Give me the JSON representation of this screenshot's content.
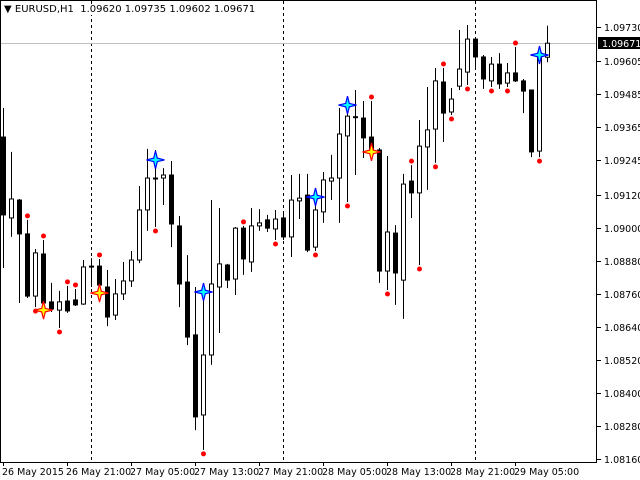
{
  "header": {
    "menu_icon": "triangle-down-icon",
    "symbol": "EURUSD,H1",
    "ohlc": "1.09620 1.09735 1.09602 1.09671"
  },
  "chart_data": {
    "type": "candlestick",
    "symbol": "EURUSD",
    "timeframe": "H1",
    "ylim": [
      1.0813,
      1.0983
    ],
    "bid_price": "1.09671",
    "colors": {
      "bull_body": "#ffffff",
      "bear_body": "#000000",
      "wick": "#000000",
      "bid_line": "#c0c0c0",
      "fractal_dot": "#ff0000",
      "sell_star": "#ffff00",
      "sell_star_outline": "#ff0000",
      "buy_star": "#00ffff",
      "buy_star_outline": "#0000ff",
      "period_separator": "#000000"
    },
    "y_ticks": [
      "1.09730",
      "1.09605",
      "1.09485",
      "1.09365",
      "1.09245",
      "1.09120",
      "1.09000",
      "1.08880",
      "1.08760",
      "1.08640",
      "1.08520",
      "1.08400",
      "1.08280",
      "1.08160"
    ],
    "x_tick_labels": [
      {
        "bar": 0,
        "label": "26 May 2015"
      },
      {
        "bar": 8,
        "label": "26 May 21:00"
      },
      {
        "bar": 16,
        "label": "27 May 05:00"
      },
      {
        "bar": 24,
        "label": "27 May 13:00"
      },
      {
        "bar": 32,
        "label": "27 May 21:00"
      },
      {
        "bar": 40,
        "label": "28 May 05:00"
      },
      {
        "bar": 48,
        "label": "28 May 13:00"
      },
      {
        "bar": 56,
        "label": "28 May 21:00"
      },
      {
        "bar": 64,
        "label": "29 May 05:00"
      }
    ],
    "period_separators_at_bars": [
      11,
      35,
      59
    ],
    "candles_ohlc": [
      [
        1.0933,
        1.09436,
        1.08854,
        1.09047
      ],
      [
        1.09036,
        1.09276,
        1.08967,
        1.09105
      ],
      [
        1.09101,
        1.09105,
        1.08727,
        1.08978
      ],
      [
        1.08978,
        1.09029,
        1.08745,
        1.08752
      ],
      [
        1.08752,
        1.08923,
        1.08712,
        1.08909
      ],
      [
        1.08905,
        1.08956,
        1.08694,
        1.08727
      ],
      [
        1.08731,
        1.088,
        1.08694,
        1.08705
      ],
      [
        1.08701,
        1.08771,
        1.08636,
        1.08731
      ],
      [
        1.08734,
        1.08789,
        1.08691,
        1.08698
      ],
      [
        1.08738,
        1.08778,
        1.08716,
        1.0872
      ],
      [
        1.08723,
        1.08883,
        1.0872,
        1.08858
      ],
      [
        1.08861,
        1.0889,
        1.08785,
        1.08858
      ],
      [
        1.08861,
        1.08887,
        1.08767,
        1.08792
      ],
      [
        1.08785,
        1.08847,
        1.08643,
        1.08676
      ],
      [
        1.08683,
        1.08814,
        1.08665,
        1.0876
      ],
      [
        1.0876,
        1.08876,
        1.08738,
        1.08807
      ],
      [
        1.08807,
        1.08916,
        1.08785,
        1.08883
      ],
      [
        1.08883,
        1.09152,
        1.08872,
        1.09065
      ],
      [
        1.09065,
        1.09287,
        1.08989,
        1.09181
      ],
      [
        1.09181,
        1.09283,
        1.09003,
        1.09178
      ],
      [
        1.09181,
        1.09217,
        1.09083,
        1.09192
      ],
      [
        1.09192,
        1.09243,
        1.0893,
        1.09014
      ],
      [
        1.09007,
        1.09043,
        1.08712,
        1.08796
      ],
      [
        1.08803,
        1.08901,
        1.08574,
        1.08603
      ],
      [
        1.08611,
        1.08785,
        1.08265,
        1.08313
      ],
      [
        1.0832,
        1.08789,
        1.08193,
        1.08538
      ],
      [
        1.08538,
        1.09101,
        1.08502,
        1.08796
      ],
      [
        1.08785,
        1.09072,
        1.08618,
        1.08869
      ],
      [
        1.08865,
        1.08869,
        1.08781,
        1.0881
      ],
      [
        1.08814,
        1.09003,
        1.08756,
        1.08999
      ],
      [
        1.08999,
        1.09007,
        1.08829,
        1.08887
      ],
      [
        1.08876,
        1.09072,
        1.0884,
        1.09007
      ],
      [
        1.09007,
        1.09068,
        1.08989,
        1.09018
      ],
      [
        1.09029,
        1.09047,
        1.08985,
        1.08999
      ],
      [
        1.08996,
        1.09065,
        1.08956,
        1.09032
      ],
      [
        1.09036,
        1.09054,
        1.08956,
        1.08967
      ],
      [
        1.08967,
        1.09192,
        1.08894,
        1.09101
      ],
      [
        1.09098,
        1.09196,
        1.09032,
        1.09108
      ],
      [
        1.09119,
        1.09196,
        1.08912,
        1.08919
      ],
      [
        1.0893,
        1.09116,
        1.08916,
        1.09065
      ],
      [
        1.09058,
        1.09203,
        1.09018,
        1.09174
      ],
      [
        1.0917,
        1.09265,
        1.09101,
        1.09181
      ],
      [
        1.09181,
        1.09436,
        1.09018,
        1.09341
      ],
      [
        1.09334,
        1.09476,
        1.09094,
        1.09406
      ],
      [
        1.09403,
        1.09501,
        1.09192,
        1.09404
      ],
      [
        1.09399,
        1.09461,
        1.09254,
        1.09327
      ],
      [
        1.0933,
        1.09461,
        1.09265,
        1.09279
      ],
      [
        1.09283,
        1.0929,
        1.088,
        1.08843
      ],
      [
        1.08843,
        1.09261,
        1.08774,
        1.08985
      ],
      [
        1.08981,
        1.0901,
        1.0872,
        1.08836
      ],
      [
        1.0881,
        1.09196,
        1.08669,
        1.09159
      ],
      [
        1.0917,
        1.09228,
        1.09036,
        1.09127
      ],
      [
        1.09127,
        1.09392,
        1.08865,
        1.09297
      ],
      [
        1.09294,
        1.09512,
        1.09138,
        1.09356
      ],
      [
        1.09359,
        1.09581,
        1.09236,
        1.09534
      ],
      [
        1.0953,
        1.09581,
        1.09312,
        1.09417
      ],
      [
        1.09421,
        1.09508,
        1.0941,
        1.09468
      ],
      [
        1.09515,
        1.09719,
        1.09501,
        1.09577
      ],
      [
        1.09566,
        1.09737,
        1.09519,
        1.09686
      ],
      [
        1.09686,
        1.0969,
        1.09574,
        1.09621
      ],
      [
        1.09621,
        1.09628,
        1.09505,
        1.09541
      ],
      [
        1.09534,
        1.09621,
        1.09512,
        1.09595
      ],
      [
        1.09595,
        1.09635,
        1.09505,
        1.09523
      ],
      [
        1.09526,
        1.09599,
        1.09512,
        1.09563
      ],
      [
        1.09563,
        1.09657,
        1.0953,
        1.09534
      ],
      [
        1.09534,
        1.09541,
        1.09417,
        1.09497
      ],
      [
        1.09501,
        1.09501,
        1.09257,
        1.09276
      ],
      [
        1.09279,
        1.09646,
        1.09257,
        1.09635
      ],
      [
        1.0962,
        1.09735,
        1.09602,
        1.09671
      ]
    ],
    "fractal_dots": [
      {
        "bar": 3,
        "side": "high"
      },
      {
        "bar": 5,
        "side": "high"
      },
      {
        "bar": 4,
        "side": "low"
      },
      {
        "bar": 7,
        "side": "low"
      },
      {
        "bar": 8,
        "side": "high"
      },
      {
        "bar": 9,
        "side": "high"
      },
      {
        "bar": 12,
        "side": "high"
      },
      {
        "bar": 19,
        "side": "low"
      },
      {
        "bar": 25,
        "side": "low"
      },
      {
        "bar": 30,
        "side": "high"
      },
      {
        "bar": 34,
        "side": "low"
      },
      {
        "bar": 39,
        "side": "low"
      },
      {
        "bar": 43,
        "side": "low"
      },
      {
        "bar": 46,
        "side": "high"
      },
      {
        "bar": 48,
        "side": "low"
      },
      {
        "bar": 51,
        "side": "high"
      },
      {
        "bar": 52,
        "side": "low"
      },
      {
        "bar": 54,
        "side": "low"
      },
      {
        "bar": 55,
        "side": "high"
      },
      {
        "bar": 56,
        "side": "low"
      },
      {
        "bar": 58,
        "side": "low"
      },
      {
        "bar": 61,
        "side": "low"
      },
      {
        "bar": 63,
        "side": "low"
      },
      {
        "bar": 64,
        "side": "high"
      },
      {
        "bar": 67,
        "side": "low"
      }
    ],
    "yellow_stars": [
      {
        "bar": 5,
        "price": 1.08701
      },
      {
        "bar": 12,
        "price": 1.08763
      },
      {
        "bar": 46,
        "price": 1.09276
      }
    ],
    "cyan_stars": [
      {
        "bar": 19,
        "price": 1.09247
      },
      {
        "bar": 25,
        "price": 1.08767
      },
      {
        "bar": 39,
        "price": 1.09112
      },
      {
        "bar": 43,
        "price": 1.09446
      },
      {
        "bar": 67,
        "price": 1.09628
      }
    ]
  }
}
